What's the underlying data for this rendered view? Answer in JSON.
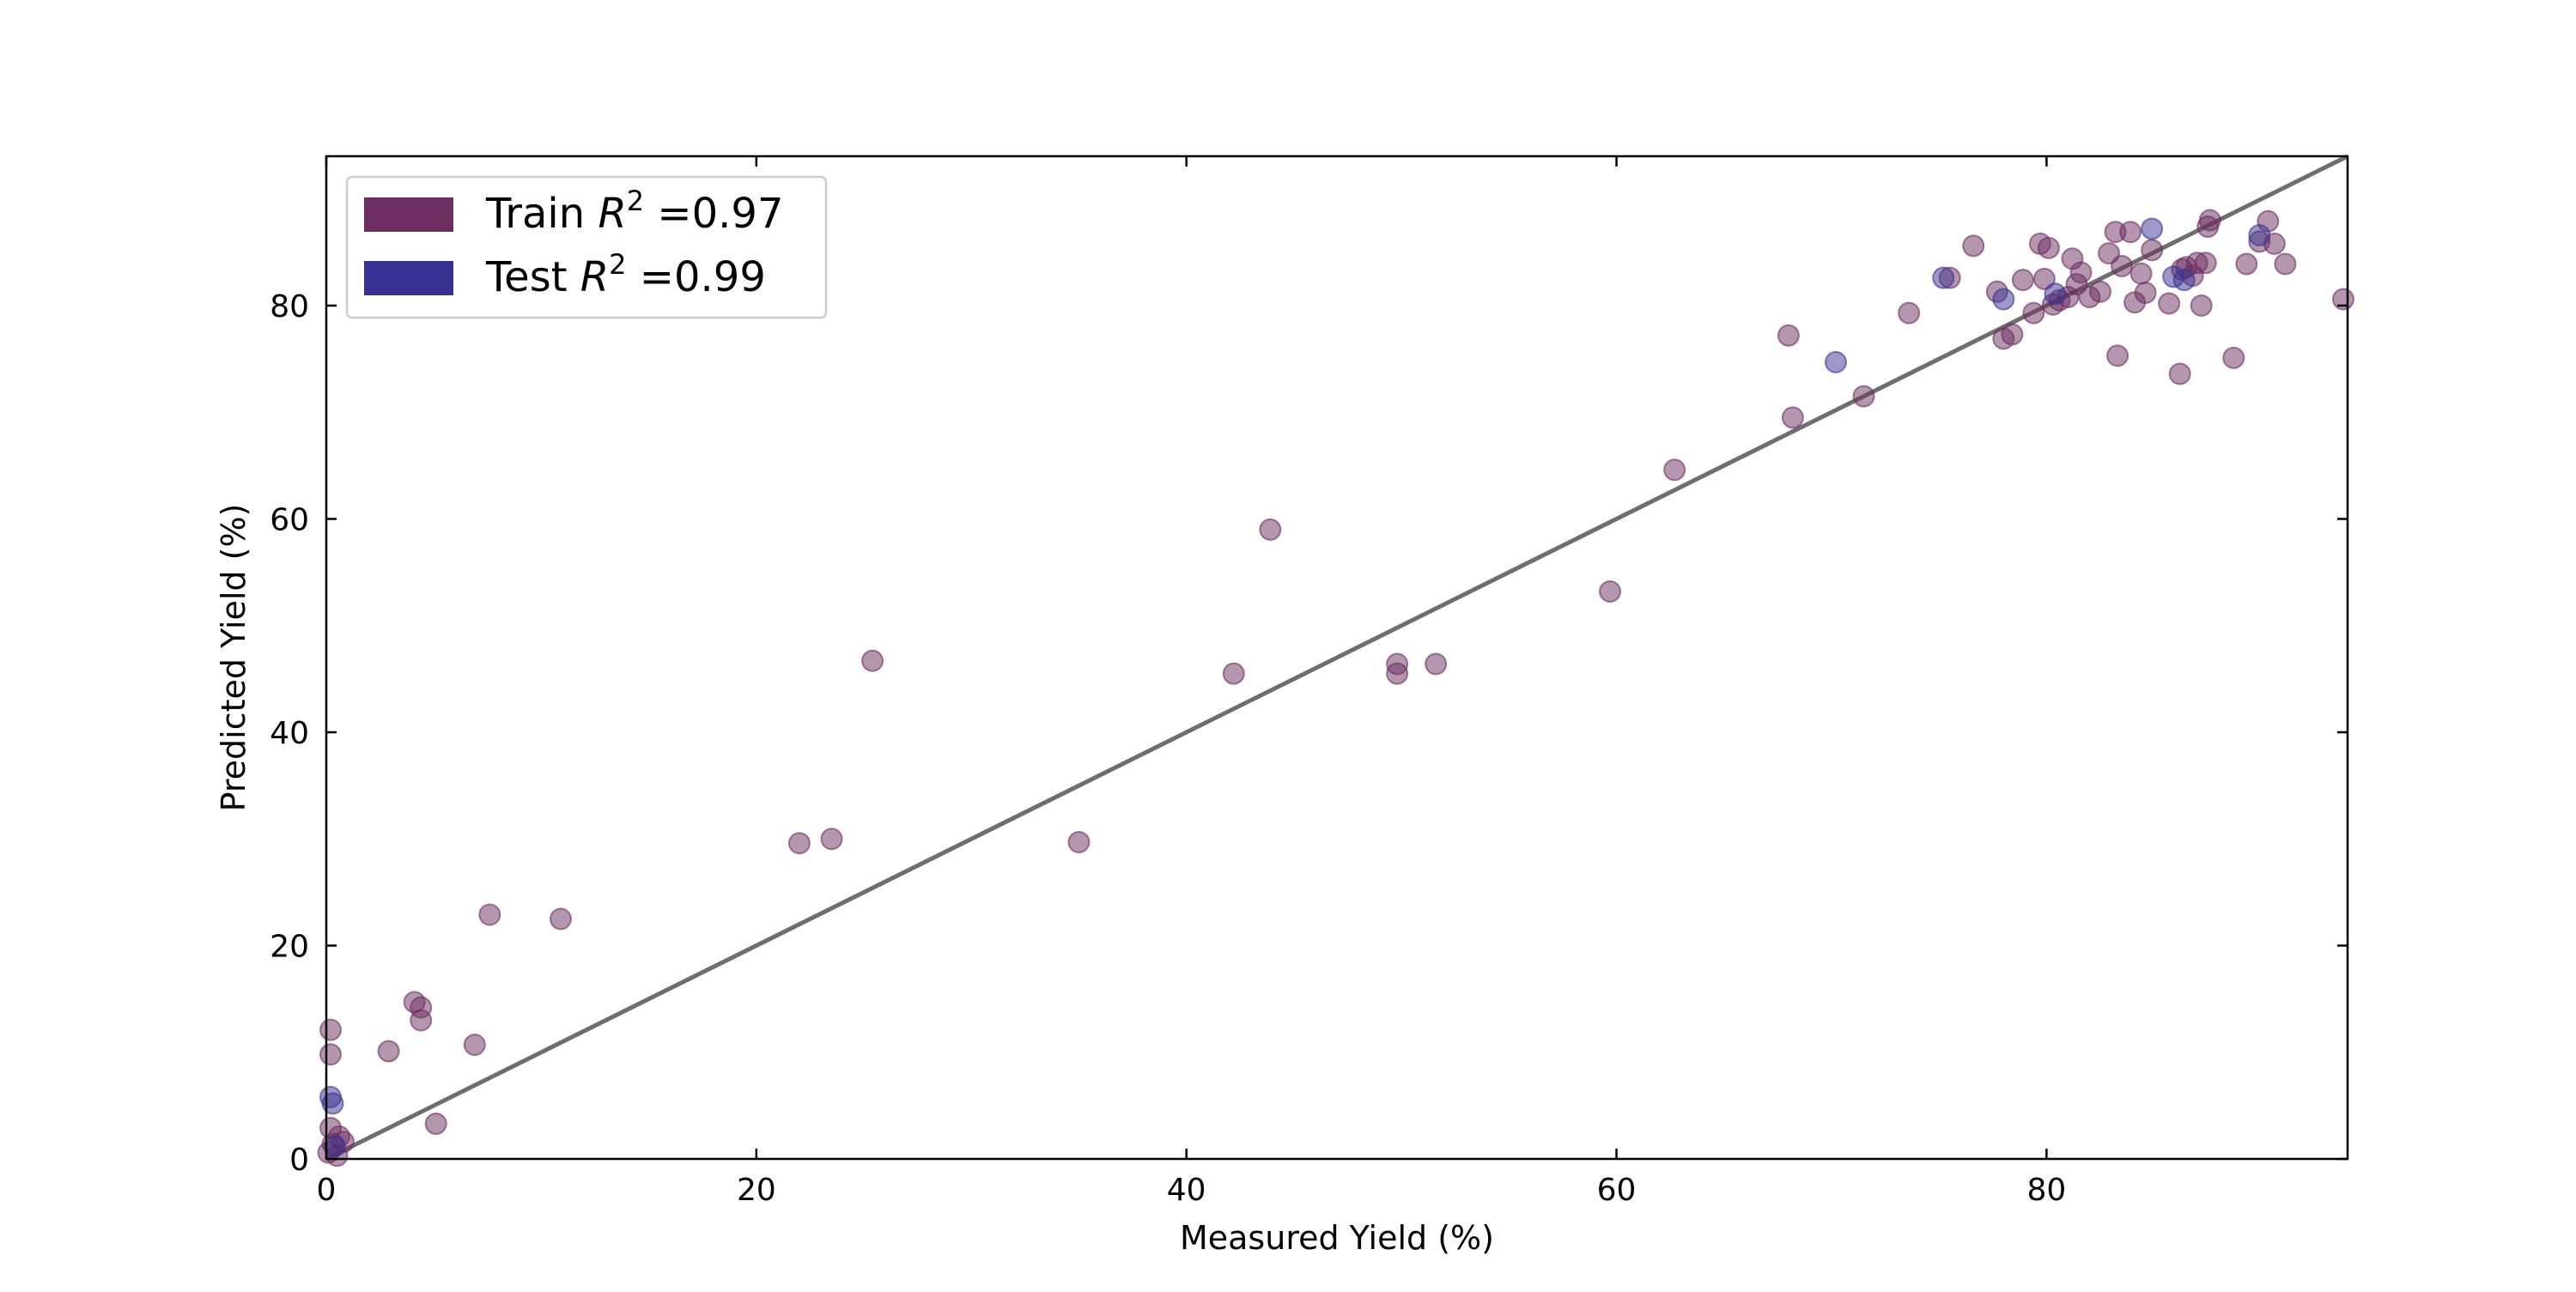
{
  "chart_data": {
    "type": "scatter",
    "xlabel": "Measured Yield (%)",
    "ylabel": "Predicted Yield (%)",
    "xlim": [
      0,
      94
    ],
    "ylim": [
      0,
      94
    ],
    "xticks": [
      0,
      20,
      40,
      60,
      80
    ],
    "yticks": [
      0,
      20,
      40,
      60,
      80
    ],
    "grid": false,
    "legend_position": "top-left",
    "reference_line": {
      "from": [
        0,
        0
      ],
      "to": [
        94,
        94
      ],
      "color": "#6e6e6e"
    },
    "series": [
      {
        "name": "Train",
        "legend": {
          "prefix": "Train ",
          "symbol": "R",
          "sup": "2",
          "suffix": " =0.97"
        },
        "color": "#6b2d5f",
        "points": [
          [
            0.1,
            0.6
          ],
          [
            0.2,
            2.9
          ],
          [
            0.3,
            1.4
          ],
          [
            0.5,
            0.3
          ],
          [
            0.6,
            2.1
          ],
          [
            0.8,
            1.6
          ],
          [
            0.2,
            9.8
          ],
          [
            0.2,
            12.1
          ],
          [
            2.9,
            10.1
          ],
          [
            4.1,
            14.7
          ],
          [
            4.4,
            14.2
          ],
          [
            4.4,
            13.0
          ],
          [
            5.1,
            3.3
          ],
          [
            6.9,
            10.7
          ],
          [
            7.6,
            22.9
          ],
          [
            10.9,
            22.5
          ],
          [
            22.0,
            29.6
          ],
          [
            23.5,
            30.0
          ],
          [
            25.4,
            46.7
          ],
          [
            35.0,
            29.7
          ],
          [
            42.2,
            45.5
          ],
          [
            43.9,
            59.0
          ],
          [
            49.8,
            45.5
          ],
          [
            49.8,
            46.4
          ],
          [
            51.6,
            46.4
          ],
          [
            59.7,
            53.2
          ],
          [
            62.7,
            64.6
          ],
          [
            68.0,
            77.2
          ],
          [
            68.2,
            69.5
          ],
          [
            71.5,
            71.5
          ],
          [
            73.6,
            79.3
          ],
          [
            75.5,
            82.6
          ],
          [
            76.6,
            85.6
          ],
          [
            77.7,
            81.3
          ],
          [
            78.0,
            76.9
          ],
          [
            78.4,
            77.3
          ],
          [
            78.9,
            82.4
          ],
          [
            79.4,
            79.3
          ],
          [
            79.7,
            85.8
          ],
          [
            79.9,
            82.5
          ],
          [
            80.1,
            85.4
          ],
          [
            80.3,
            80.1
          ],
          [
            80.6,
            80.5
          ],
          [
            81.0,
            80.8
          ],
          [
            81.2,
            84.4
          ],
          [
            81.4,
            82.0
          ],
          [
            81.6,
            83.1
          ],
          [
            82.0,
            80.8
          ],
          [
            82.5,
            81.3
          ],
          [
            82.9,
            84.9
          ],
          [
            83.2,
            86.9
          ],
          [
            83.3,
            75.3
          ],
          [
            83.5,
            83.7
          ],
          [
            83.9,
            86.9
          ],
          [
            84.1,
            80.3
          ],
          [
            84.4,
            83.0
          ],
          [
            84.6,
            81.2
          ],
          [
            84.9,
            85.2
          ],
          [
            85.7,
            80.2
          ],
          [
            86.2,
            73.6
          ],
          [
            86.3,
            83.4
          ],
          [
            86.5,
            83.6
          ],
          [
            86.8,
            82.8
          ],
          [
            87.0,
            84.0
          ],
          [
            87.2,
            80.0
          ],
          [
            87.4,
            84.0
          ],
          [
            87.5,
            87.4
          ],
          [
            87.6,
            88.0
          ],
          [
            88.7,
            75.1
          ],
          [
            89.3,
            83.9
          ],
          [
            89.9,
            86.0
          ],
          [
            90.3,
            87.9
          ],
          [
            90.6,
            85.8
          ],
          [
            91.1,
            83.9
          ],
          [
            93.8,
            80.6
          ]
        ]
      },
      {
        "name": "Test",
        "legend": {
          "prefix": "Test ",
          "symbol": "R",
          "sup": "2",
          "suffix": " =0.99"
        },
        "color": "#3a3292",
        "points": [
          [
            0.2,
            5.8
          ],
          [
            0.3,
            5.2
          ],
          [
            0.4,
            1.2
          ],
          [
            70.2,
            74.7
          ],
          [
            75.2,
            82.6
          ],
          [
            78.0,
            80.6
          ],
          [
            80.4,
            81.1
          ],
          [
            84.9,
            87.2
          ],
          [
            85.9,
            82.7
          ],
          [
            86.4,
            82.4
          ],
          [
            89.9,
            86.6
          ]
        ]
      }
    ]
  }
}
